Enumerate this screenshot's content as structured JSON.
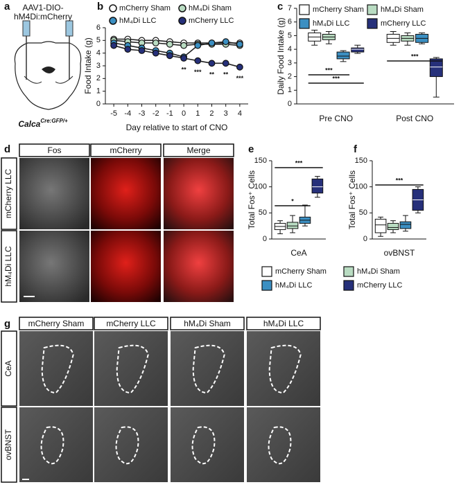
{
  "panel_labels": [
    "a",
    "b",
    "c",
    "d",
    "e",
    "f",
    "g"
  ],
  "panel_a": {
    "construct": [
      "AAV1-DIO-",
      "hM4Di:mCherry"
    ],
    "genotype": "Calca",
    "genotype_sup": "Cre:GFP/+"
  },
  "chart_data": [
    {
      "type": "line",
      "ylabel": "Food Intake (g)",
      "xlabel": "Day relative to start of CNO",
      "x": [
        -5,
        -4,
        -3,
        -2,
        -1,
        0,
        1,
        2,
        3,
        4
      ],
      "xlim": [
        -5.6,
        4.6
      ],
      "xticks": [
        -5,
        -4,
        -3,
        -2,
        -1,
        0,
        1,
        2,
        3,
        4
      ],
      "ylim": [
        0,
        6
      ],
      "yticks": [
        0,
        1,
        2,
        3,
        4,
        5,
        6
      ],
      "series": [
        {
          "name": "mCherry Sham",
          "color": "#ffffff",
          "values": [
            5.1,
            5.1,
            5.0,
            5.0,
            4.9,
            4.8,
            4.8,
            4.8,
            4.8,
            4.8
          ]
        },
        {
          "name": "hM₄Di Sham",
          "color": "#b9dcc2",
          "values": [
            5.0,
            4.9,
            4.8,
            4.8,
            4.7,
            4.6,
            4.7,
            4.7,
            4.7,
            4.6
          ]
        },
        {
          "name": "hM₄Di LLC",
          "color": "#3b8fc2",
          "values": [
            4.8,
            4.6,
            4.4,
            4.2,
            4.0,
            3.7,
            4.6,
            4.8,
            4.9,
            4.7
          ]
        },
        {
          "name": "mCherry LLC",
          "color": "#26307a",
          "values": [
            4.6,
            4.3,
            4.2,
            4.0,
            3.8,
            3.6,
            3.4,
            3.2,
            3.2,
            2.9
          ]
        }
      ],
      "annotations": [
        {
          "x": 0,
          "text": "**"
        },
        {
          "x": 1,
          "text": "***"
        },
        {
          "x": 2,
          "text": "**"
        },
        {
          "x": 3,
          "text": "**"
        },
        {
          "x": 4,
          "text": "***"
        }
      ]
    },
    {
      "type": "box",
      "ylabel": "Daily Food Intake (g)",
      "categories": [
        "Pre CNO",
        "Post CNO"
      ],
      "ylim": [
        0,
        7
      ],
      "yticks": [
        0,
        1,
        2,
        3,
        4,
        5,
        6,
        7
      ],
      "series": [
        {
          "name": "mCherry Sham",
          "color": "#ffffff",
          "values": [
            [
              4.3,
              4.6,
              4.9,
              5.2,
              5.4
            ],
            [
              4.3,
              4.5,
              4.8,
              5.1,
              5.3
            ]
          ]
        },
        {
          "name": "hM₄Di Sham",
          "color": "#b9dcc2",
          "values": [
            [
              4.4,
              4.7,
              4.9,
              5.1,
              5.3
            ],
            [
              4.3,
              4.6,
              4.8,
              5.0,
              5.2
            ]
          ]
        },
        {
          "name": "hM₄Di LLC",
          "color": "#3b8fc2",
          "values": [
            [
              3.1,
              3.3,
              3.5,
              3.8,
              3.9
            ],
            [
              4.4,
              4.5,
              4.8,
              5.1,
              5.2
            ]
          ]
        },
        {
          "name": "mCherry LLC",
          "color": "#26307a",
          "values": [
            [
              3.7,
              3.8,
              4.0,
              4.1,
              4.3
            ],
            [
              0.5,
              2.0,
              2.7,
              3.3,
              3.4
            ]
          ]
        }
      ],
      "comparisons": [
        {
          "label": "***"
        },
        {
          "label": "***"
        },
        {
          "label": "***"
        }
      ]
    },
    {
      "type": "box",
      "ylabel": "Total Fos⁺ Cells",
      "categories": [
        "CeA"
      ],
      "ylim": [
        0,
        150
      ],
      "yticks": [
        0,
        50,
        100,
        150
      ],
      "series": [
        {
          "color": "#ffffff",
          "values": [
            [
              10,
              18,
              24,
              30,
              35
            ]
          ]
        },
        {
          "color": "#b9dcc2",
          "values": [
            [
              12,
              20,
              25,
              32,
              45
            ]
          ]
        },
        {
          "color": "#3b8fc2",
          "values": [
            [
              25,
              30,
              36,
              42,
              65
            ]
          ]
        },
        {
          "color": "#26307a",
          "values": [
            [
              80,
              88,
              100,
              115,
              120
            ]
          ]
        }
      ],
      "comparisons": [
        {
          "label": "*"
        },
        {
          "label": "***"
        }
      ]
    },
    {
      "type": "box",
      "ylabel": "Total Fos⁺ Cells",
      "categories": [
        "ovBNST"
      ],
      "ylim": [
        0,
        150
      ],
      "yticks": [
        0,
        50,
        100,
        150
      ],
      "series": [
        {
          "color": "#ffffff",
          "values": [
            [
              5,
              12,
              27,
              38,
              42
            ]
          ]
        },
        {
          "color": "#b9dcc2",
          "values": [
            [
              12,
              18,
              22,
              30,
              35
            ]
          ]
        },
        {
          "color": "#3b8fc2",
          "values": [
            [
              15,
              20,
              28,
              33,
              45
            ]
          ]
        },
        {
          "color": "#26307a",
          "values": [
            [
              50,
              55,
              75,
              95,
              100
            ]
          ]
        }
      ],
      "comparisons": [
        {
          "label": "***"
        }
      ]
    }
  ],
  "shared_legend": [
    {
      "name": "mCherry Sham",
      "color": "#ffffff"
    },
    {
      "name": "hM₄Di Sham",
      "color": "#b9dcc2"
    },
    {
      "name": "hM₄Di LLC",
      "color": "#3b8fc2"
    },
    {
      "name": "mCherry LLC",
      "color": "#26307a"
    }
  ],
  "panel_d": {
    "columns": [
      "Fos",
      "mCherry",
      "Merge"
    ],
    "rows": [
      "mCherry LLC",
      "hM₄Di LLC"
    ]
  },
  "panel_g": {
    "columns": [
      "mCherry Sham",
      "mCherry LLC",
      "hM₄Di Sham",
      "hM₄Di LLC"
    ],
    "rows": [
      "CeA",
      "ovBNST"
    ]
  }
}
